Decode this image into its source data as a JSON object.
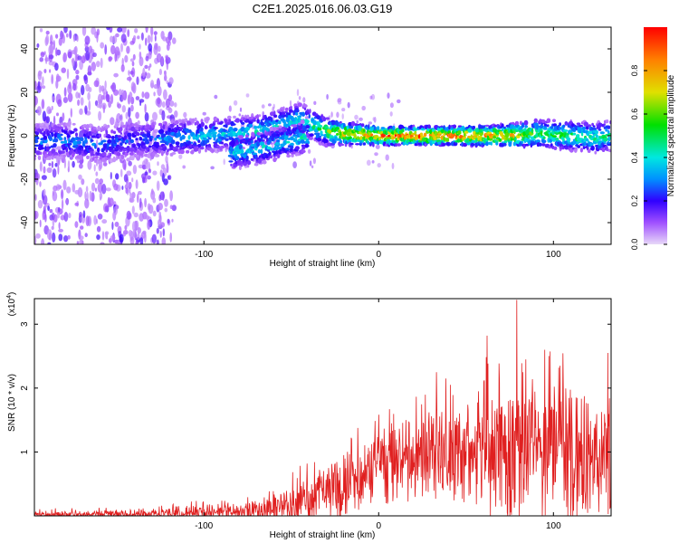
{
  "figure": {
    "title": "C2E1.2025.016.06.03.G19"
  },
  "chart_data": [
    {
      "type": "heatmap",
      "title": "C2E1.2025.016.06.03.G19",
      "xlabel": "Height of straight line (km)",
      "ylabel": "Frequency (Hz)",
      "xlim": [
        -197,
        133
      ],
      "ylim": [
        -50,
        50
      ],
      "x_ticks": [
        -100,
        0,
        100
      ],
      "x_tick_labels": [
        "-100",
        "0",
        "100"
      ],
      "y_ticks": [
        -40,
        -20,
        0,
        20,
        40
      ],
      "y_tick_labels": [
        "-40",
        "-20",
        "0",
        "20",
        "40"
      ],
      "colorbar": {
        "label": "Normalized spectral amplitude",
        "range": [
          0,
          1
        ],
        "ticks": [
          0.0,
          0.2,
          0.4,
          0.6,
          0.8
        ],
        "tick_labels": [
          "0.0",
          "0.2",
          "0.4",
          "0.6",
          "0.8"
        ],
        "stops": [
          {
            "v": 0.0,
            "color": "#e8d8f8"
          },
          {
            "v": 0.1,
            "color": "#a050ff"
          },
          {
            "v": 0.2,
            "color": "#3000ff"
          },
          {
            "v": 0.3,
            "color": "#0090ff"
          },
          {
            "v": 0.4,
            "color": "#00e8e0"
          },
          {
            "v": 0.55,
            "color": "#00e000"
          },
          {
            "v": 0.7,
            "color": "#e0e000"
          },
          {
            "v": 0.85,
            "color": "#ff8000"
          },
          {
            "v": 1.0,
            "color": "#ff0000"
          }
        ]
      },
      "ridge": [
        {
          "x": -197,
          "f": -3,
          "a": 0.3
        },
        {
          "x": -180,
          "f": -2,
          "a": 0.32
        },
        {
          "x": -160,
          "f": -4,
          "a": 0.3
        },
        {
          "x": -140,
          "f": -2,
          "a": 0.26
        },
        {
          "x": -120,
          "f": -1,
          "a": 0.34
        },
        {
          "x": -100,
          "f": 0,
          "a": 0.38
        },
        {
          "x": -85,
          "f": 1,
          "a": 0.4
        },
        {
          "x": -70,
          "f": 2,
          "a": 0.42
        },
        {
          "x": -55,
          "f": 5,
          "a": 0.42
        },
        {
          "x": -45,
          "f": 8,
          "a": 0.45
        },
        {
          "x": -38,
          "f": 5,
          "a": 0.48
        },
        {
          "x": -30,
          "f": 2,
          "a": 0.6
        },
        {
          "x": -20,
          "f": 1,
          "a": 0.8
        },
        {
          "x": 0,
          "f": 0,
          "a": 0.95
        },
        {
          "x": 20,
          "f": 0,
          "a": 0.95
        },
        {
          "x": 40,
          "f": 0,
          "a": 0.95
        },
        {
          "x": 60,
          "f": 0,
          "a": 0.9
        },
        {
          "x": 75,
          "f": 0,
          "a": 0.8
        },
        {
          "x": 90,
          "f": 1,
          "a": 0.6
        },
        {
          "x": 110,
          "f": 0,
          "a": 0.55
        },
        {
          "x": 125,
          "f": -1,
          "a": 0.5
        },
        {
          "x": 133,
          "f": 0,
          "a": 0.5
        }
      ],
      "branch": [
        {
          "x": -85,
          "f": -8,
          "a": 0.4
        },
        {
          "x": -70,
          "f": -6,
          "a": 0.4
        },
        {
          "x": -55,
          "f": -3,
          "a": 0.42
        },
        {
          "x": -40,
          "f": 0,
          "a": 0.45
        }
      ]
    },
    {
      "type": "line",
      "xlabel": "Height of straight line (km)",
      "ylabel": "SNR (10 * v/v)",
      "y_scale_label": "(x10",
      "y_scale_exponent": "4",
      "xlim": [
        -197,
        133
      ],
      "ylim": [
        0,
        3.4
      ],
      "x_ticks": [
        -100,
        0,
        100
      ],
      "x_tick_labels": [
        "-100",
        "0",
        "100"
      ],
      "y_ticks": [
        1,
        2,
        3
      ],
      "y_tick_labels": [
        "1",
        "2",
        "3"
      ],
      "line_color": "#e02020",
      "envelope": [
        {
          "x": -197,
          "base": 0.02,
          "amp": 0.06
        },
        {
          "x": -130,
          "base": 0.03,
          "amp": 0.07
        },
        {
          "x": -100,
          "base": 0.06,
          "amp": 0.12
        },
        {
          "x": -80,
          "base": 0.07,
          "amp": 0.13
        },
        {
          "x": -60,
          "base": 0.12,
          "amp": 0.2
        },
        {
          "x": -40,
          "base": 0.28,
          "amp": 0.4
        },
        {
          "x": -20,
          "base": 0.55,
          "amp": 0.55
        },
        {
          "x": 0,
          "base": 0.78,
          "amp": 0.55
        },
        {
          "x": 20,
          "base": 0.95,
          "amp": 0.65
        },
        {
          "x": 40,
          "base": 1.05,
          "amp": 0.8
        },
        {
          "x": 60,
          "base": 1.05,
          "amp": 0.9
        },
        {
          "x": 80,
          "base": 1.05,
          "amp": 1.1
        },
        {
          "x": 100,
          "base": 0.95,
          "amp": 1.0
        },
        {
          "x": 133,
          "base": 0.95,
          "amp": 1.0
        }
      ],
      "peaks": [
        {
          "x": 79,
          "y": 3.38
        },
        {
          "x": 62,
          "y": 2.82
        },
        {
          "x": 95,
          "y": 2.6
        },
        {
          "x": 131,
          "y": 2.55
        },
        {
          "x": 60,
          "y": 2.1
        },
        {
          "x": 84,
          "y": 2.45
        },
        {
          "x": 33,
          "y": 2.25
        },
        {
          "x": 57,
          "y": 1.95
        },
        {
          "x": -20,
          "y": 0.95
        },
        {
          "x": -34,
          "y": 0.72
        },
        {
          "x": 41,
          "y": 2.05
        }
      ]
    }
  ]
}
